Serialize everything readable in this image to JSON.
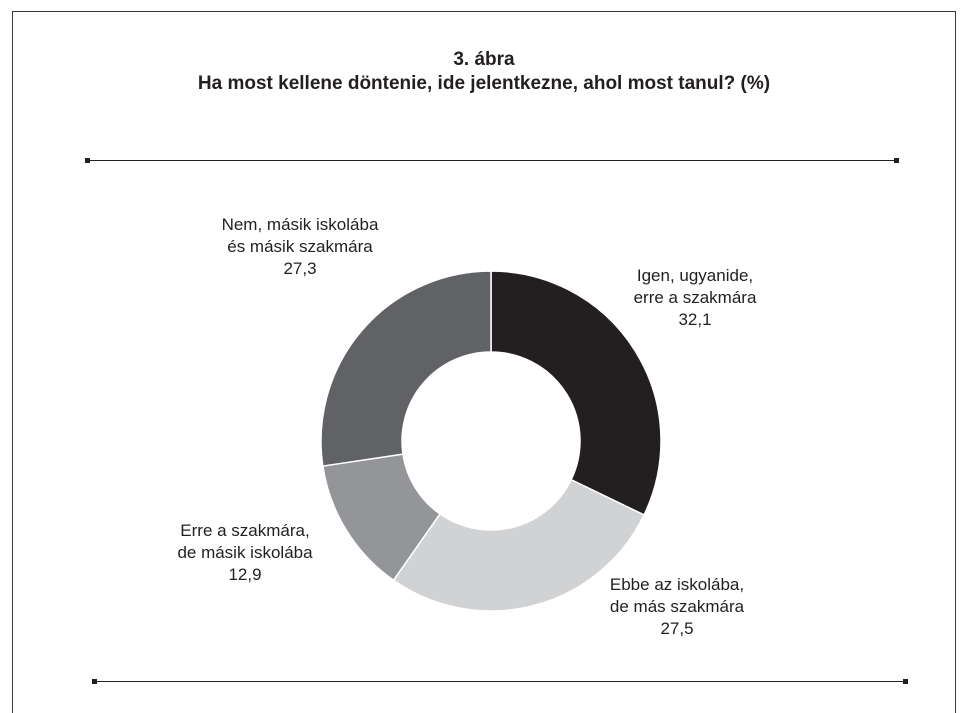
{
  "chart_data": {
    "type": "pie",
    "title": "3. ábra",
    "subtitle": "Ha most kellene döntenie, ide jelentkezne, ahol most tanul? (%)",
    "donut": true,
    "slices": [
      {
        "label_lines": [
          "Igen, ugyanide,",
          "erre a szakmára"
        ],
        "value": 32.1,
        "value_text": "32,1",
        "color": "#231f20"
      },
      {
        "label_lines": [
          "Ebbe az iskolába,",
          "de más szakmára"
        ],
        "value": 27.5,
        "value_text": "27,5",
        "color": "#d1d2d4"
      },
      {
        "label_lines": [
          "Erre a szakmára,",
          "de másik iskolába"
        ],
        "value": 12.9,
        "value_text": "12,9",
        "color": "#939598"
      },
      {
        "label_lines": [
          "Nem, másik iskolába",
          "és másik szakmára"
        ],
        "value": 27.3,
        "value_text": "27,3",
        "color": "#616265"
      }
    ]
  }
}
